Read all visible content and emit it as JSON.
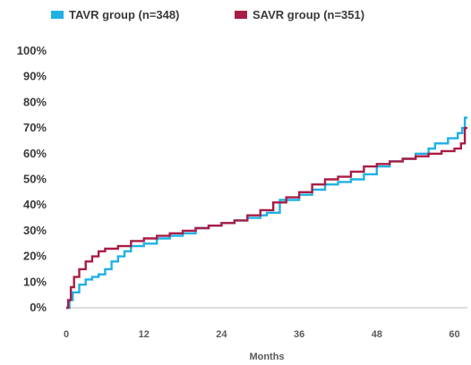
{
  "chart_data": {
    "type": "line",
    "line_style": "step",
    "xlabel": "Months",
    "ylabel": "",
    "title": "",
    "xlim": [
      0,
      62
    ],
    "ylim": [
      0,
      100
    ],
    "x_ticks": [
      0,
      12,
      24,
      36,
      48,
      60
    ],
    "y_ticks": [
      0,
      10,
      20,
      30,
      40,
      50,
      60,
      70,
      80,
      90,
      100
    ],
    "y_tick_labels": [
      "0%",
      "10%",
      "20%",
      "30%",
      "40%",
      "50%",
      "60%",
      "70%",
      "80%",
      "90%",
      "100%"
    ],
    "grid": false,
    "legend_position": "top-left",
    "series": [
      {
        "name": "TAVR group (n=348)",
        "color": "#1fb0e6",
        "x": [
          0,
          0.5,
          1,
          2,
          3,
          4,
          5,
          6,
          7,
          8,
          9,
          10,
          12,
          14,
          16,
          18,
          20,
          22,
          24,
          26,
          28,
          30,
          31,
          33,
          36,
          38,
          40,
          42,
          44,
          46,
          48,
          50,
          52,
          54,
          56,
          57,
          59,
          60.5,
          61.2,
          61.6,
          62
        ],
        "y": [
          0,
          3,
          6,
          9,
          11,
          12,
          13,
          15,
          18,
          20,
          22,
          24,
          25,
          27,
          28,
          29,
          31,
          32,
          33,
          34,
          35,
          36,
          37,
          42,
          44,
          46,
          48,
          49,
          50,
          52,
          55,
          57,
          58,
          60,
          62,
          64,
          66,
          68,
          70,
          74,
          74
        ]
      },
      {
        "name": "SAVR group (n=351)",
        "color": "#a81d45",
        "x": [
          0,
          0.3,
          0.7,
          1.2,
          2,
          3,
          4,
          5,
          6,
          8,
          10,
          12,
          14,
          16,
          18,
          20,
          22,
          24,
          26,
          28,
          30,
          32,
          34,
          36,
          38,
          40,
          42,
          44,
          46,
          48,
          50,
          52,
          54,
          56,
          58,
          60,
          61,
          61.6,
          62
        ],
        "y": [
          0,
          3,
          8,
          12,
          15,
          18,
          20,
          22,
          23,
          24,
          26,
          27,
          28,
          29,
          30,
          31,
          32,
          33,
          34,
          36,
          38,
          41,
          43,
          45,
          48,
          50,
          51,
          53,
          55,
          56,
          57,
          58,
          59,
          60,
          61,
          62,
          64,
          70,
          70
        ]
      }
    ]
  }
}
